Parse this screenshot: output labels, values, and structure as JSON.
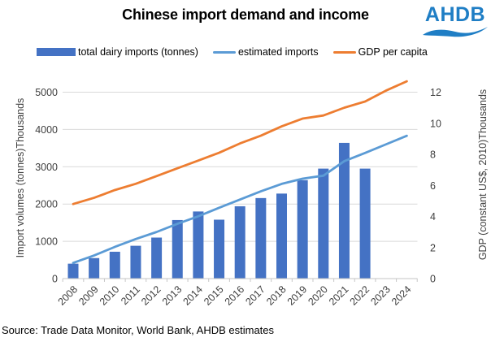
{
  "header": {
    "title": "Chinese import demand and income",
    "logo_text": "AHDB"
  },
  "legend": [
    {
      "label": "total dairy imports (tonnes)",
      "marker": "bar",
      "color": "#4472C4"
    },
    {
      "label": "estimated imports",
      "marker": "line",
      "color": "#5B9BD5"
    },
    {
      "label": "GDP per capita",
      "marker": "line",
      "color": "#ED7D31"
    }
  ],
  "footer": {
    "source": "Source: Trade Data Monitor, World Bank, AHDB estimates"
  },
  "chart_data": {
    "type": "combo",
    "categories": [
      "2008",
      "2009",
      "2010",
      "2011",
      "2012",
      "2013",
      "2014",
      "2015",
      "2016",
      "2017",
      "2018",
      "2019",
      "2020",
      "2021",
      "2022",
      "2023",
      "2024"
    ],
    "series": [
      {
        "name": "total dairy imports (tonnes)",
        "type": "bar",
        "axis": "left",
        "color": "#4472C4",
        "values": [
          400,
          550,
          720,
          880,
          1100,
          1570,
          1800,
          1580,
          1940,
          2160,
          2280,
          2640,
          2950,
          3640,
          2950,
          null,
          null
        ]
      },
      {
        "name": "estimated imports",
        "type": "line",
        "axis": "left",
        "color": "#5B9BD5",
        "values": [
          420,
          620,
          850,
          1060,
          1250,
          1470,
          1670,
          1900,
          2120,
          2340,
          2540,
          2680,
          2760,
          3150,
          3370,
          3600,
          3830
        ]
      },
      {
        "name": "GDP per capita",
        "type": "line",
        "axis": "right",
        "color": "#ED7D31",
        "values": [
          4.8,
          5.2,
          5.7,
          6.1,
          6.6,
          7.1,
          7.6,
          8.1,
          8.7,
          9.2,
          9.8,
          10.3,
          10.5,
          11.0,
          11.4,
          12.1,
          12.7
        ]
      }
    ],
    "left_axis": {
      "title": "Import volumes (tonnes)",
      "unit_label": "Thousands",
      "min": 0,
      "max": 5000,
      "ticks": [
        0,
        1000,
        2000,
        3000,
        4000,
        5000
      ]
    },
    "right_axis": {
      "title": "GDP (constant US$, 2010)",
      "unit_label": "Thousands",
      "min": 0,
      "max": 12,
      "ticks": [
        0,
        2,
        4,
        6,
        8,
        10,
        12
      ]
    },
    "grid": true,
    "legend_position": "top",
    "colors": {
      "gridline": "#D9D9D9",
      "axis_line": "#C6C6C6",
      "tick_text": "#3f3f3f"
    }
  }
}
